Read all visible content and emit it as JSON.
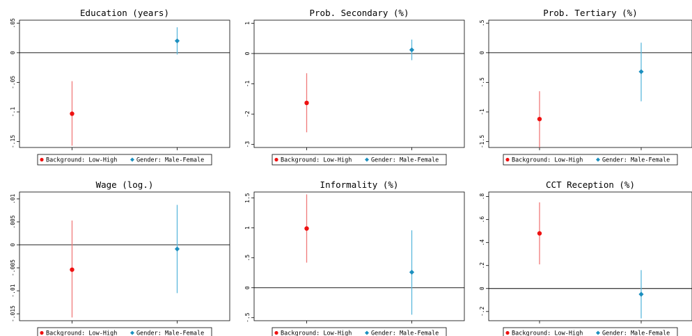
{
  "legend": {
    "items": [
      {
        "label": "Background: Low-High",
        "color": "#ee1111",
        "marker": "circle"
      },
      {
        "label": "Gender: Male-Female",
        "color": "#1b8fbf",
        "marker": "diamond"
      }
    ]
  },
  "colors": {
    "background_marker": "#ee1111",
    "background_ci": "#f07a7a",
    "gender_marker": "#1b8fbf",
    "gender_ci": "#5cb8dc"
  },
  "chart_data": [
    {
      "type": "scatter",
      "title": "Education (years)",
      "ylim": [
        -0.16,
        0.055
      ],
      "yticks": [
        0.05,
        0,
        -0.05,
        -0.1,
        -0.15
      ],
      "ytick_labels": [
        ".05",
        "0",
        "-.05",
        "-.1",
        "-.15"
      ],
      "zero_line": true,
      "series": [
        {
          "name": "Background: Low-High",
          "estimate": -0.103,
          "ci": [
            -0.157,
            -0.048
          ]
        },
        {
          "name": "Gender: Male-Female",
          "estimate": 0.02,
          "ci": [
            -0.003,
            0.043
          ]
        }
      ]
    },
    {
      "type": "scatter",
      "title": "Prob. Secondary (%)",
      "ylim": [
        -3.1,
        1.1
      ],
      "yticks": [
        1,
        0,
        -1,
        -2,
        -3
      ],
      "ytick_labels": [
        "1",
        "0",
        "-1",
        "-2",
        "-3"
      ],
      "zero_line": true,
      "series": [
        {
          "name": "Background: Low-High",
          "estimate": -1.63,
          "ci": [
            -2.6,
            -0.65
          ]
        },
        {
          "name": "Gender: Male-Female",
          "estimate": 0.12,
          "ci": [
            -0.22,
            0.46
          ]
        }
      ]
    },
    {
      "type": "scatter",
      "title": "Prob. Tertiary (%)",
      "ylim": [
        -1.6,
        0.55
      ],
      "yticks": [
        0.5,
        0,
        -0.5,
        -1,
        -1.5
      ],
      "ytick_labels": [
        ".5",
        "0",
        "-.5",
        "-1",
        "-1.5"
      ],
      "zero_line": true,
      "series": [
        {
          "name": "Background: Low-High",
          "estimate": -1.12,
          "ci": [
            -1.6,
            -0.65
          ]
        },
        {
          "name": "Gender: Male-Female",
          "estimate": -0.32,
          "ci": [
            -0.82,
            0.17
          ]
        }
      ]
    },
    {
      "type": "scatter",
      "title": "Wage (log.)",
      "ylim": [
        -0.0165,
        0.0115
      ],
      "yticks": [
        0.01,
        0.005,
        0,
        -0.005,
        -0.01,
        -0.015
      ],
      "ytick_labels": [
        ".01",
        ".005",
        "0",
        "-.005",
        "-.01",
        "-.015"
      ],
      "zero_line": true,
      "series": [
        {
          "name": "Background: Low-High",
          "estimate": -0.0054,
          "ci": [
            -0.0158,
            0.0053
          ]
        },
        {
          "name": "Gender: Male-Female",
          "estimate": -0.0009,
          "ci": [
            -0.0105,
            0.0087
          ]
        }
      ]
    },
    {
      "type": "scatter",
      "title": "Informality (%)",
      "ylim": [
        -0.55,
        1.6
      ],
      "yticks": [
        1.5,
        1,
        0.5,
        0,
        -0.5
      ],
      "ytick_labels": [
        "1.5",
        "1",
        ".5",
        "0",
        "-.5"
      ],
      "zero_line": true,
      "series": [
        {
          "name": "Background: Low-High",
          "estimate": 0.99,
          "ci": [
            0.42,
            1.56
          ]
        },
        {
          "name": "Gender: Male-Female",
          "estimate": 0.26,
          "ci": [
            -0.45,
            0.96
          ]
        }
      ]
    },
    {
      "type": "scatter",
      "title": "CCT Reception (%)",
      "ylim": [
        -0.28,
        0.84
      ],
      "yticks": [
        0.8,
        0.6,
        0.4,
        0.2,
        0,
        -0.2
      ],
      "ytick_labels": [
        ".8",
        ".6",
        ".4",
        ".2",
        "0",
        "-.2"
      ],
      "zero_line": true,
      "series": [
        {
          "name": "Background: Low-High",
          "estimate": 0.48,
          "ci": [
            0.21,
            0.75
          ]
        },
        {
          "name": "Gender: Male-Female",
          "estimate": -0.05,
          "ci": [
            -0.26,
            0.16
          ]
        }
      ]
    }
  ]
}
